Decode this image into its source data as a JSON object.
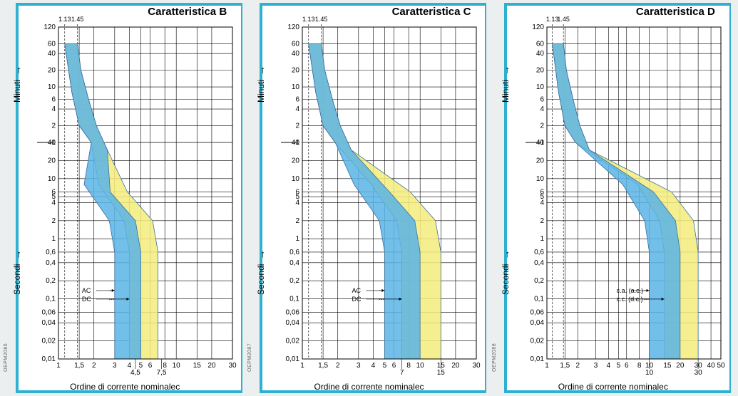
{
  "common": {
    "bg": "#ecefef",
    "panel_border": "#2eb0d0",
    "grid_color": "#000000",
    "grid_stroke_width": 0.6,
    "zone_ac": "#59b4e6",
    "zone_dc": "#f4ec7d",
    "axis_label_fontsize": 10,
    "title_fontsize": 15,
    "ref_lines": [
      1.13,
      1.45
    ],
    "y_axis": {
      "top_label": "Minuti",
      "top_scale": "log",
      "top_ticks": [
        1,
        2,
        4,
        6,
        10,
        20,
        40,
        60,
        120
      ],
      "bottom_label": "Secondi",
      "bottom_scale": "log",
      "bottom_ticks": [
        0.01,
        0.02,
        0.04,
        0.06,
        0.1,
        0.2,
        0.4,
        0.6,
        1,
        2,
        4,
        5,
        6,
        10,
        20,
        40
      ]
    },
    "x_axis": {
      "label": "Ordine di corrente nominalec",
      "scale": "log"
    }
  },
  "panels": [
    {
      "title": "Caratteristica B",
      "x_ticks": [
        1,
        1.5,
        2,
        3,
        4,
        5,
        6,
        8,
        10,
        15,
        20,
        30
      ],
      "x_sub_ticks": [
        4.5,
        7.5
      ],
      "legend": {
        "ac": "AC",
        "dc": "DC",
        "ac_sym": "~",
        "dc_sym": "⎓"
      },
      "ac_band": {
        "low": 3.0,
        "high": 5.0
      },
      "dc_band": {
        "low": 4.0,
        "high": 7.0
      },
      "thermal_top_low": 1.13,
      "thermal_top_high": 1.45,
      "sidecode": "OEPM2086"
    },
    {
      "title": "Caratteristica C",
      "x_ticks": [
        1,
        1.5,
        2,
        3,
        4,
        5,
        6,
        8,
        10,
        15,
        20,
        30
      ],
      "x_sub_ticks": [
        7,
        15
      ],
      "legend": {
        "ac": "AC",
        "dc": "DC",
        "ac_sym": "~",
        "dc_sym": "⎓"
      },
      "ac_band": {
        "low": 5.0,
        "high": 10.0
      },
      "dc_band": {
        "low": 7.0,
        "high": 15.0
      },
      "thermal_top_low": 1.13,
      "thermal_top_high": 1.45,
      "sidecode": "OEPM2087"
    },
    {
      "title": "Caratteristica D",
      "x_ticks": [
        1,
        1.5,
        2,
        3,
        4,
        5,
        6,
        8,
        10,
        15,
        20,
        30,
        40,
        50
      ],
      "x_sub_ticks": [
        10,
        30
      ],
      "legend": {
        "ac": "c.a. (a.c.)",
        "dc": "c.c. (d.c.)",
        "ac_sym": "~",
        "dc_sym": "⎓"
      },
      "ac_band": {
        "low": 10.0,
        "high": 20.0
      },
      "dc_band": {
        "low": 14.0,
        "high": 30.0
      },
      "thermal_top_low": 1.13,
      "thermal_top_high": 1.45,
      "sidecode": "OEPM2088"
    }
  ]
}
